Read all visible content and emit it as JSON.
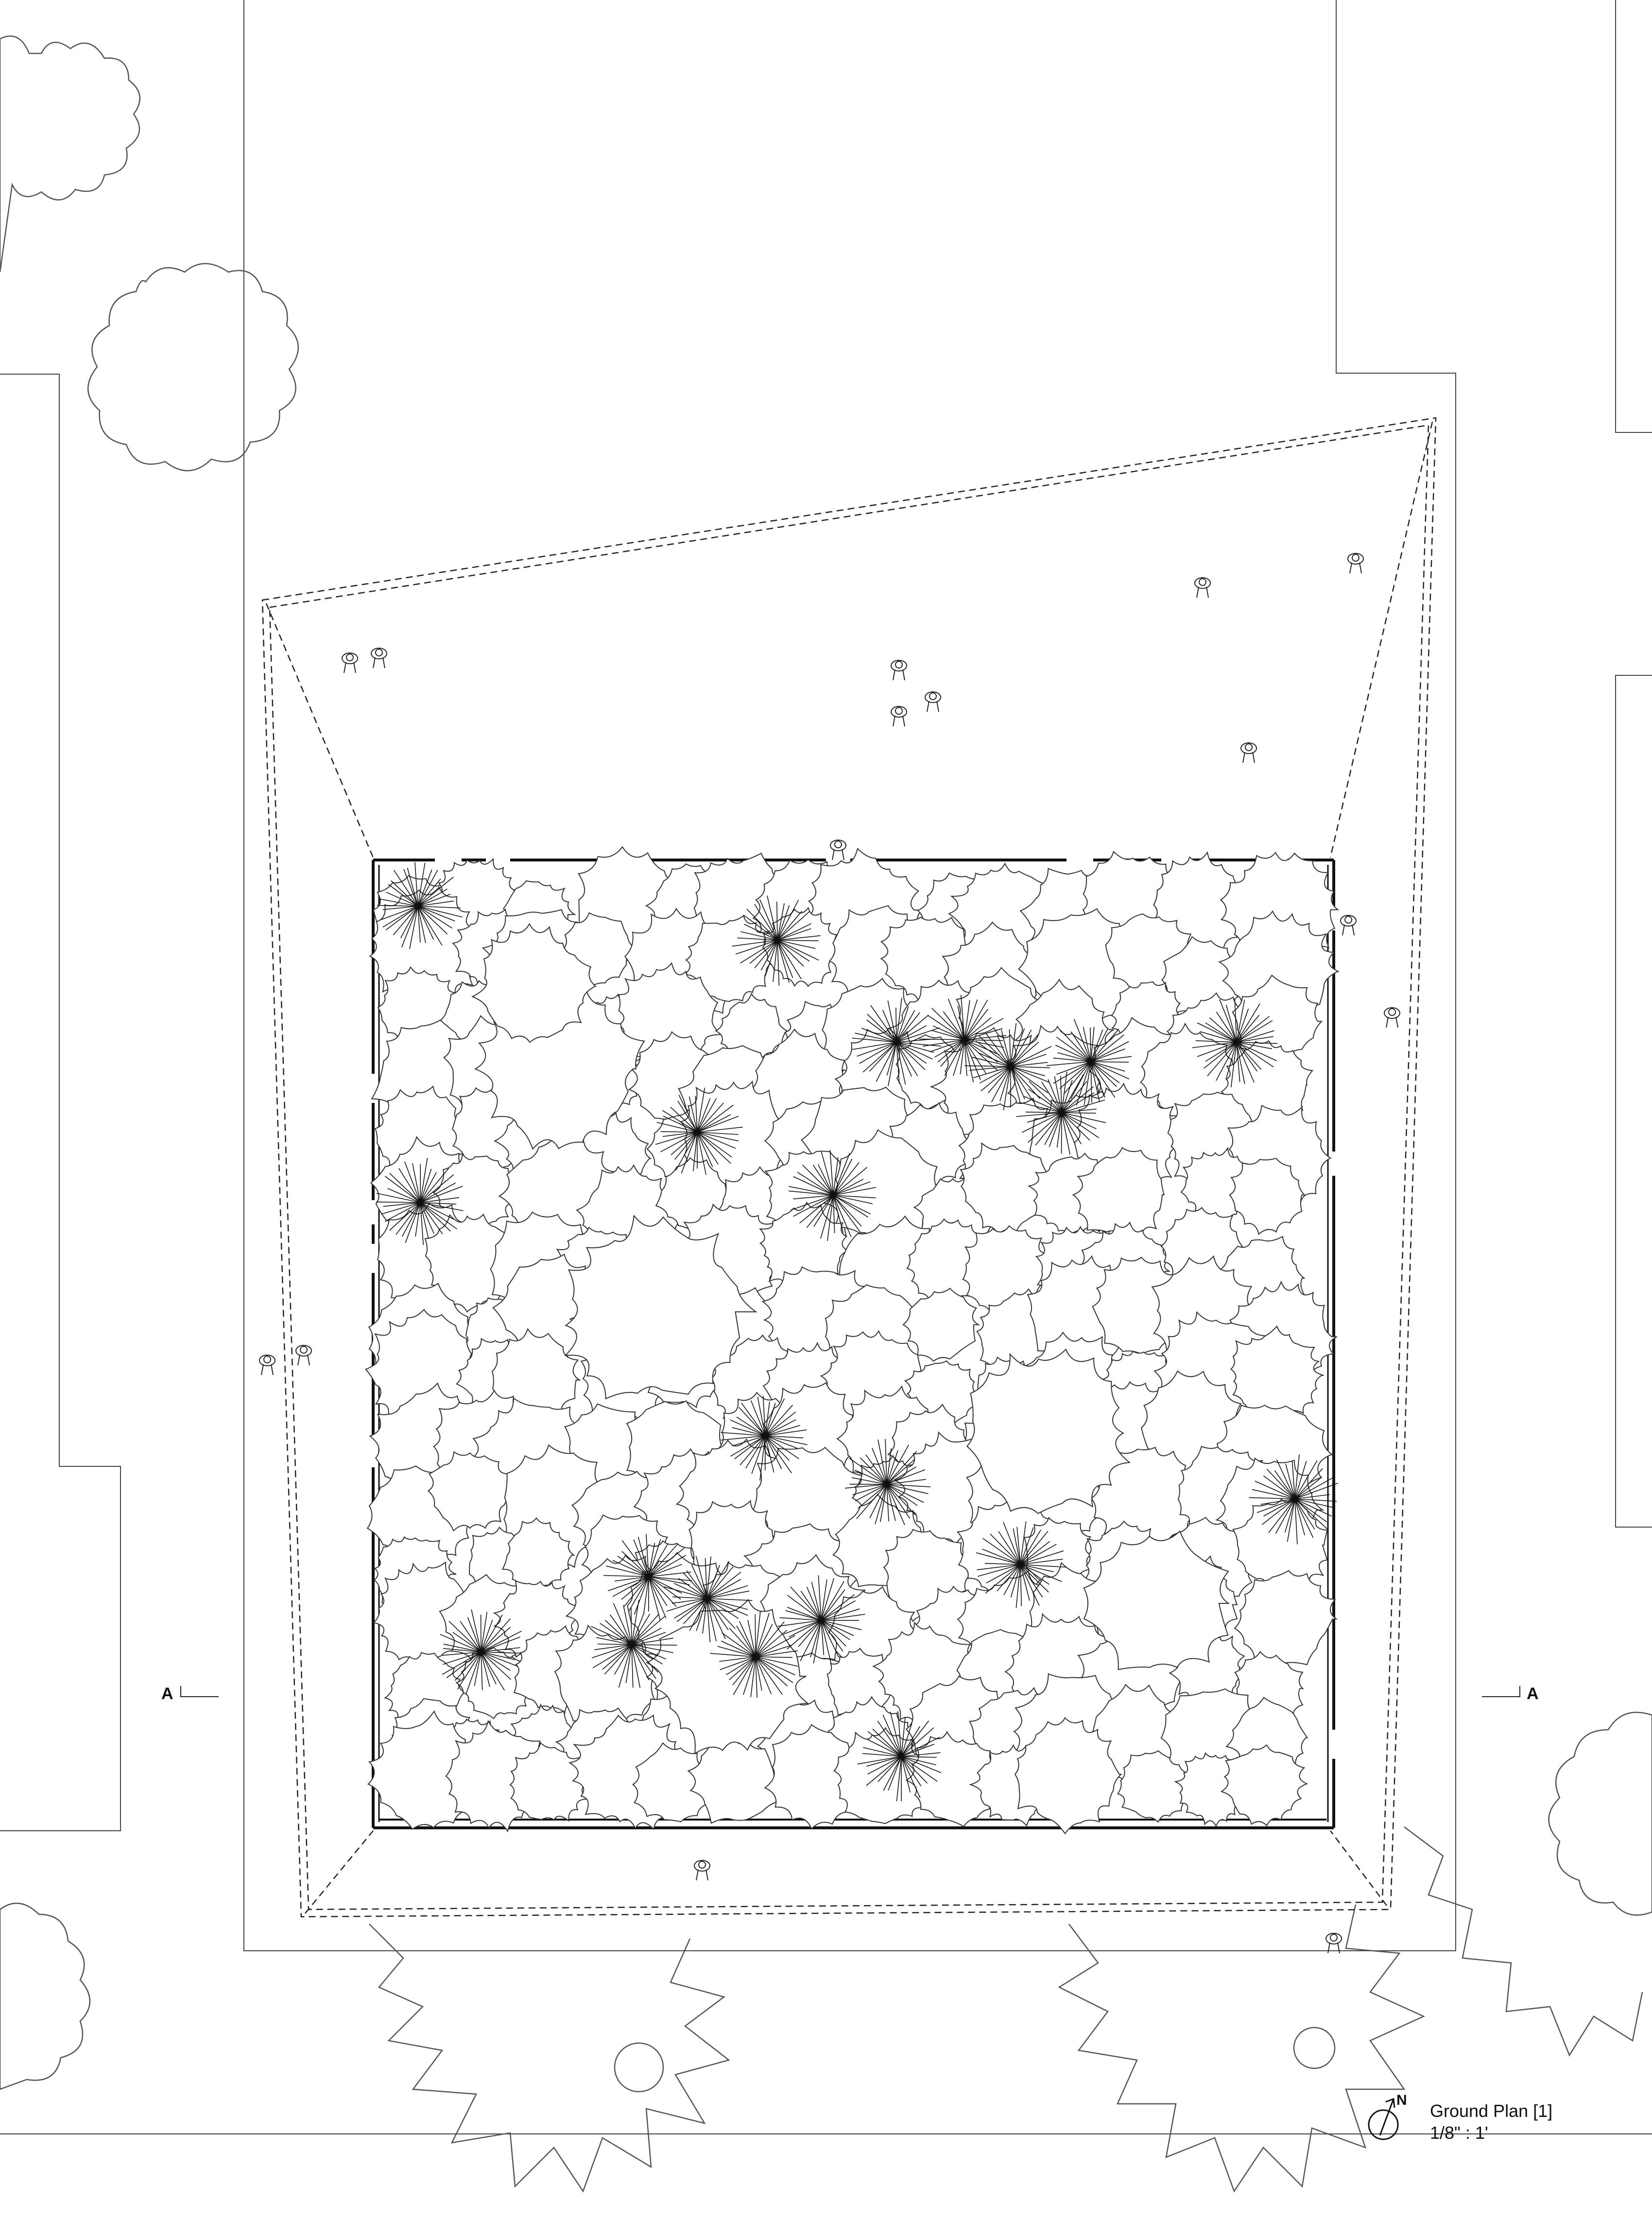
{
  "title_block": {
    "title": "Ground Plan [1]",
    "scale": "1/8\" : 1'"
  },
  "north_arrow": {
    "label": "N",
    "icon": "north-arrow-icon"
  },
  "section_markers": {
    "left": "A",
    "right": "A"
  },
  "colors": {
    "line": "#111111",
    "thin_line": "#333333",
    "background": "#ffffff"
  }
}
